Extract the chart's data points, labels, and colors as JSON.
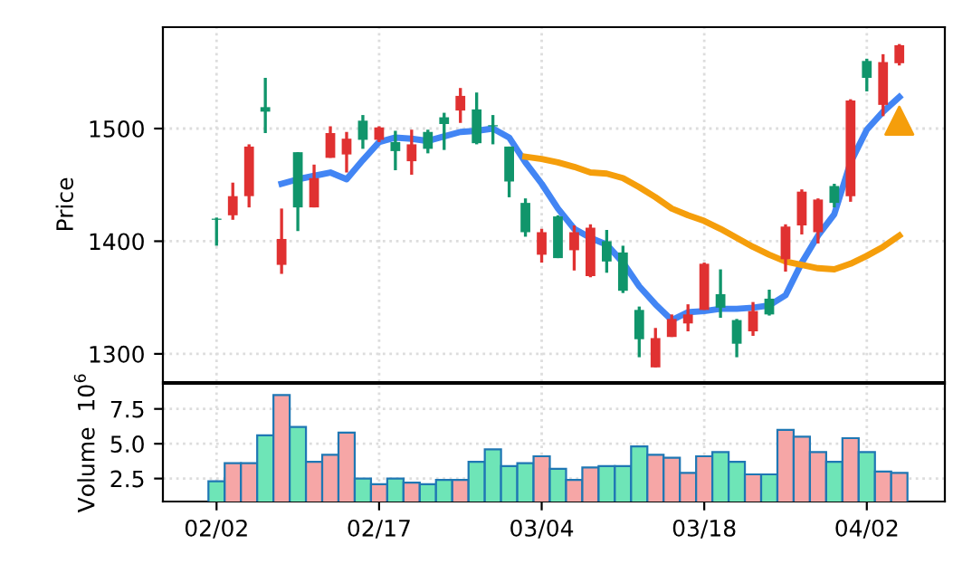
{
  "chart_data": [
    {
      "type": "candlestick",
      "ylabel": "Price",
      "categories": [
        null,
        null,
        null,
        null,
        null,
        null,
        null,
        null,
        null,
        null,
        null,
        null,
        null,
        null,
        null,
        null,
        null,
        null,
        null,
        null,
        null,
        null,
        null,
        null,
        null,
        null,
        null,
        null,
        null,
        null,
        null,
        null,
        null,
        null,
        null,
        null,
        null,
        null,
        null,
        null,
        null,
        null,
        null
      ],
      "ohlc": [
        [
          1419,
          1421,
          1396,
          1420
        ],
        [
          1440,
          1452,
          1419,
          1423
        ],
        [
          1484,
          1486,
          1430,
          1440
        ],
        [
          1515,
          1545,
          1496,
          1519
        ],
        [
          1402,
          1429,
          1371,
          1379
        ],
        [
          1430,
          1479,
          1409,
          1479
        ],
        [
          1456,
          1468,
          1430,
          1430
        ],
        [
          1496,
          1502,
          1474,
          1474
        ],
        [
          1491,
          1497,
          1461,
          1477
        ],
        [
          1490,
          1512,
          1482,
          1507
        ],
        [
          1501,
          1502,
          1488,
          1490
        ],
        [
          1480,
          1498,
          1463,
          1488
        ],
        [
          1486,
          1499,
          1459,
          1471
        ],
        [
          1482,
          1499,
          1478,
          1497
        ],
        [
          1504,
          1514,
          1481,
          1510
        ],
        [
          1529,
          1536,
          1505,
          1516
        ],
        [
          1487,
          1532,
          1486,
          1517
        ],
        [
          1502,
          1512,
          1486,
          1503
        ],
        [
          1453,
          1484,
          1439,
          1484
        ],
        [
          1408,
          1438,
          1404,
          1434
        ],
        [
          1408,
          1411,
          1381,
          1388
        ],
        [
          1385,
          1423,
          1385,
          1422
        ],
        [
          1408,
          1414,
          1374,
          1392
        ],
        [
          1412,
          1415,
          1368,
          1369
        ],
        [
          1382,
          1410,
          1372,
          1400
        ],
        [
          1356,
          1396,
          1354,
          1390
        ],
        [
          1313,
          1342,
          1297,
          1339
        ],
        [
          1314,
          1323,
          1288,
          1288
        ],
        [
          1331,
          1335,
          1315,
          1315
        ],
        [
          1335,
          1344,
          1320,
          1327
        ],
        [
          1380,
          1381,
          1339,
          1339
        ],
        [
          1341,
          1375,
          1332,
          1353
        ],
        [
          1309,
          1331,
          1297,
          1330
        ],
        [
          1338,
          1346,
          1316,
          1320
        ],
        [
          1335,
          1357,
          1334,
          1349
        ],
        [
          1413,
          1415,
          1373,
          1384
        ],
        [
          1444,
          1446,
          1406,
          1414
        ],
        [
          1437,
          1438,
          1398,
          1408
        ],
        [
          1434,
          1451,
          1430,
          1449
        ],
        [
          1525,
          1526,
          1435,
          1440
        ],
        [
          1545,
          1562,
          1533,
          1560
        ],
        [
          1559,
          1566,
          1511,
          1521
        ],
        [
          1574,
          1575,
          1556,
          1558
        ]
      ],
      "colors": [
        "#10956b",
        "#e03131",
        "#e03131",
        "#10956b",
        "#e03131",
        "#10956b",
        "#e03131",
        "#e03131",
        "#e03131",
        "#10956b",
        "#e03131",
        "#10956b",
        "#e03131",
        "#10956b",
        "#10956b",
        "#e03131",
        "#10956b",
        "#10956b",
        "#10956b",
        "#10956b",
        "#e03131",
        "#10956b",
        "#e03131",
        "#e03131",
        "#10956b",
        "#10956b",
        "#10956b",
        "#e03131",
        "#e03131",
        "#e03131",
        "#e03131",
        "#10956b",
        "#10956b",
        "#e03131",
        "#10956b",
        "#e03131",
        "#e03131",
        "#e03131",
        "#10956b",
        "#e03131",
        "#10956b",
        "#e03131",
        "#e03131"
      ],
      "series": [
        {
          "type": "line",
          "color": "#4285f4",
          "values": [
            null,
            null,
            null,
            null,
            1451,
            1455,
            1458,
            1461,
            1455,
            1472,
            1488,
            1492,
            1491,
            1489,
            1493,
            1497,
            1498,
            1500,
            1492,
            1470,
            1451,
            1429,
            1411,
            1403,
            1397,
            1381,
            1360,
            1344,
            1330,
            1337,
            1338,
            1340,
            1340,
            1341,
            1343,
            1352,
            1381,
            1405,
            1424,
            1470,
            1499,
            1515,
            1528
          ]
        },
        {
          "type": "line",
          "color": "#f59e0b",
          "values": [
            null,
            null,
            null,
            null,
            null,
            null,
            null,
            null,
            null,
            null,
            null,
            null,
            null,
            null,
            null,
            null,
            null,
            null,
            null,
            1475,
            1473,
            1470,
            1466,
            1461,
            1460,
            1456,
            1448,
            1439,
            1429,
            1423,
            1418,
            1411,
            1403,
            1395,
            1388,
            1382,
            1379,
            1376,
            1375,
            1380,
            1387,
            1395,
            1405
          ]
        },
        {
          "type": "scatter",
          "marker": "triangle",
          "color": "#f59e0b",
          "values": [
            null,
            null,
            null,
            null,
            null,
            null,
            null,
            null,
            null,
            null,
            null,
            null,
            null,
            null,
            null,
            null,
            null,
            null,
            null,
            null,
            null,
            null,
            null,
            null,
            null,
            null,
            null,
            null,
            null,
            null,
            null,
            null,
            null,
            null,
            null,
            null,
            null,
            null,
            null,
            null,
            null,
            null,
            1507
          ]
        }
      ],
      "ylim": [
        1275,
        1590
      ],
      "yticks": [
        1300,
        1400,
        1500
      ],
      "grid": true
    },
    {
      "type": "bar",
      "ylabel": "Volume  10$^{6}$",
      "categories": [
        "02/02",
        null,
        null,
        null,
        null,
        null,
        null,
        null,
        null,
        null,
        "02/17",
        null,
        null,
        null,
        null,
        null,
        null,
        null,
        null,
        null,
        "03/04",
        null,
        null,
        null,
        null,
        null,
        null,
        null,
        null,
        null,
        "03/18",
        null,
        null,
        null,
        null,
        null,
        null,
        null,
        null,
        null,
        "04/02",
        null,
        null
      ],
      "values": [
        2.3,
        3.6,
        3.6,
        5.6,
        8.5,
        6.2,
        3.7,
        4.2,
        5.8,
        2.5,
        2.1,
        2.5,
        2.2,
        2.1,
        2.4,
        2.4,
        3.7,
        4.6,
        3.4,
        3.6,
        4.1,
        3.2,
        2.4,
        3.3,
        3.4,
        3.4,
        4.8,
        4.2,
        4.0,
        2.9,
        4.1,
        4.4,
        3.7,
        2.8,
        2.8,
        6.0,
        5.5,
        4.4,
        3.7,
        5.4,
        4.4,
        3.0,
        2.9
      ],
      "colors": [
        "#6ee5b7",
        "#f6a6a6",
        "#f6a6a6",
        "#6ee5b7",
        "#f6a6a6",
        "#6ee5b7",
        "#f6a6a6",
        "#f6a6a6",
        "#f6a6a6",
        "#6ee5b7",
        "#f6a6a6",
        "#6ee5b7",
        "#f6a6a6",
        "#6ee5b7",
        "#6ee5b7",
        "#f6a6a6",
        "#6ee5b7",
        "#6ee5b7",
        "#6ee5b7",
        "#6ee5b7",
        "#f6a6a6",
        "#6ee5b7",
        "#f6a6a6",
        "#f6a6a6",
        "#6ee5b7",
        "#6ee5b7",
        "#6ee5b7",
        "#f6a6a6",
        "#f6a6a6",
        "#f6a6a6",
        "#f6a6a6",
        "#6ee5b7",
        "#6ee5b7",
        "#f6a6a6",
        "#6ee5b7",
        "#f6a6a6",
        "#f6a6a6",
        "#f6a6a6",
        "#6ee5b7",
        "#f6a6a6",
        "#6ee5b7",
        "#f6a6a6",
        "#f6a6a6"
      ],
      "ylim": [
        0.85,
        9.3
      ],
      "yticks": [
        2.5,
        {
          "value": 5.0,
          "label": "5.0"
        },
        7.5
      ],
      "grid": true
    }
  ]
}
